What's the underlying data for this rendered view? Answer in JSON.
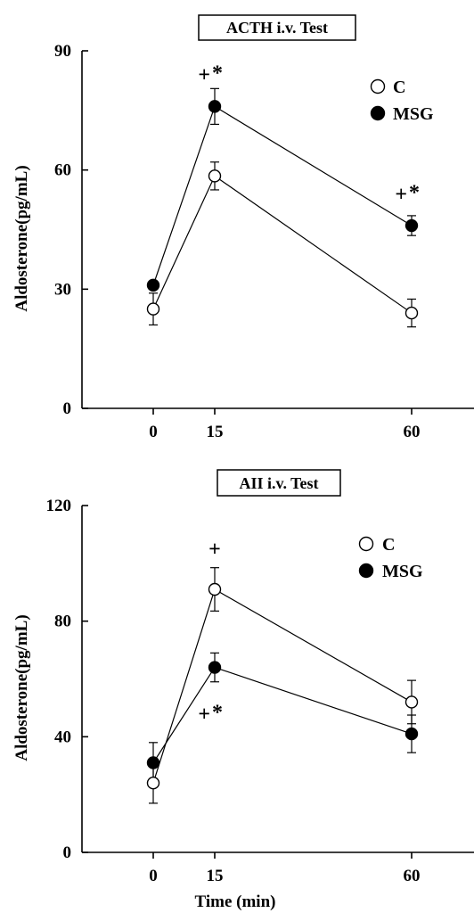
{
  "chart_data": [
    {
      "type": "line",
      "title": "ACTH i.v. Test",
      "ylabel": "Aldosterone(pg/mL)",
      "xlabel": "",
      "x": [
        0,
        15,
        60
      ],
      "xticks": [
        "0",
        "15",
        "60"
      ],
      "ylim": [
        0,
        90
      ],
      "yticks": [
        "0",
        "30",
        "60",
        "90"
      ],
      "legend_position": "top-right",
      "grid": false,
      "series": [
        {
          "name": "C",
          "marker": "open-circle",
          "values": [
            25,
            58.5,
            24
          ],
          "errors": [
            4,
            3.5,
            3.5
          ]
        },
        {
          "name": "MSG",
          "marker": "filled-circle",
          "values": [
            31,
            76,
            46
          ],
          "errors": [
            1,
            4.5,
            2.5
          ]
        }
      ],
      "annotations": [
        {
          "text": "+",
          "x": 15,
          "y": 84,
          "superscript": "*"
        },
        {
          "text": "+",
          "x": 60,
          "y": 54,
          "superscript": "*"
        }
      ]
    },
    {
      "type": "line",
      "title": "AII i.v. Test",
      "ylabel": "Aldosterone(pg/mL)",
      "xlabel": "Time (min)",
      "x": [
        0,
        15,
        60
      ],
      "xticks": [
        "0",
        "15",
        "60"
      ],
      "ylim": [
        0,
        120
      ],
      "yticks": [
        "0",
        "40",
        "80",
        "120"
      ],
      "legend_position": "top-right",
      "grid": false,
      "series": [
        {
          "name": "C",
          "marker": "open-circle",
          "values": [
            24,
            91,
            52
          ],
          "errors": [
            7,
            7.5,
            7.5
          ]
        },
        {
          "name": "MSG",
          "marker": "filled-circle",
          "values": [
            31,
            64,
            41
          ],
          "errors": [
            7,
            5,
            6.5
          ]
        }
      ],
      "annotations": [
        {
          "text": "+",
          "x": 15,
          "y": 105,
          "superscript": ""
        },
        {
          "text": "+",
          "x": 15,
          "y": 48,
          "superscript": "*"
        }
      ]
    }
  ]
}
